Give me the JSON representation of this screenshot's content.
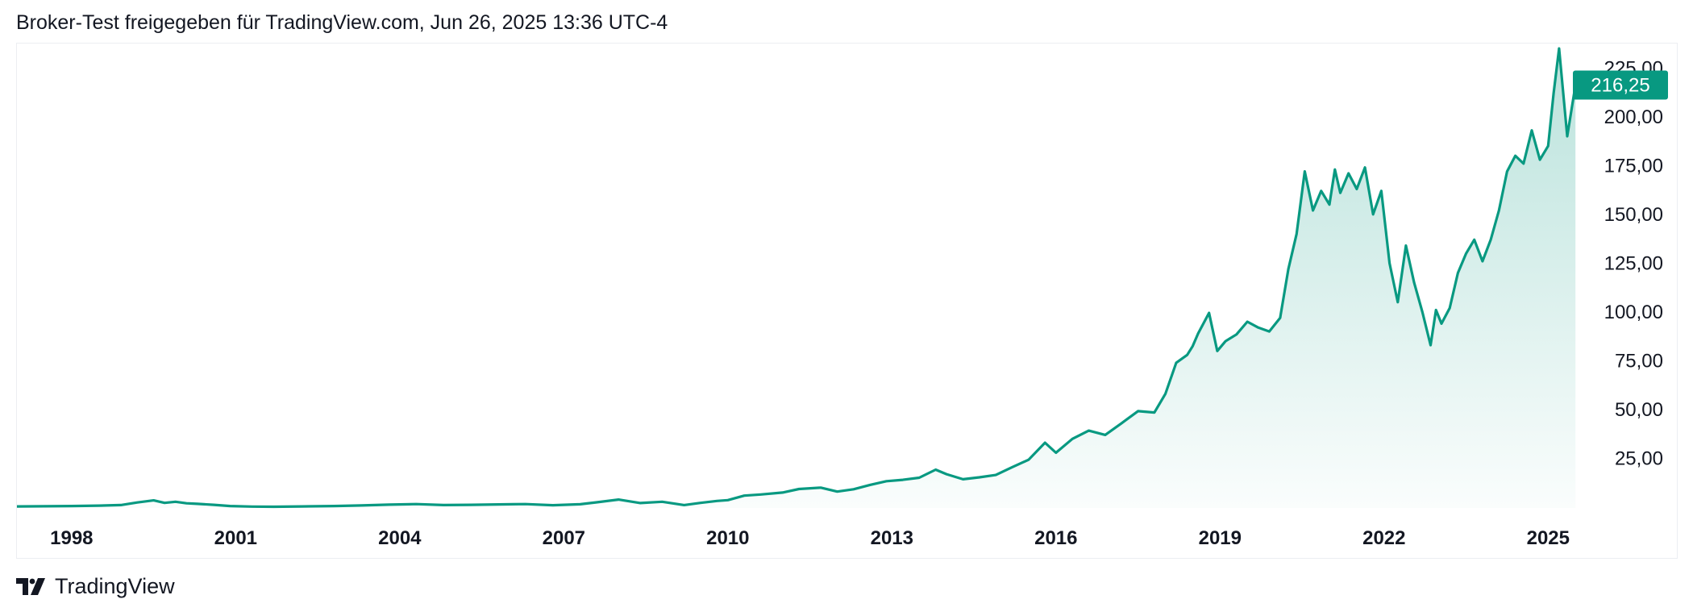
{
  "header": {
    "caption": "Broker-Test freigegeben für TradingView.com, Jun 26, 2025 13:36 UTC-4"
  },
  "footer": {
    "brand": "TradingView",
    "logo_icon": "tradingview-logo-icon"
  },
  "colors": {
    "line": "#089981",
    "fill_top": "#089981",
    "label_bg": "#089981"
  },
  "chart_data": {
    "type": "area",
    "x_ticks": [
      "1998",
      "2001",
      "2004",
      "2007",
      "2010",
      "2013",
      "2016",
      "2019",
      "2022",
      "2025"
    ],
    "y_ticks": [
      "25,00",
      "50,00",
      "75,00",
      "100,00",
      "125,00",
      "150,00",
      "175,00",
      "200,00",
      "225,00"
    ],
    "y_tick_values": [
      25,
      50,
      75,
      100,
      125,
      150,
      175,
      200,
      225
    ],
    "ylim": [
      -0.4,
      237.5
    ],
    "xlim": [
      1997.0,
      2025.6
    ],
    "last_value_label": "216,25",
    "last_value": 216.25,
    "series": [
      {
        "x": [
          1997.0,
          1998.0,
          1998.5,
          1998.9,
          1999.2,
          1999.5,
          1999.7,
          1999.9,
          2000.1,
          2000.3,
          2000.6,
          2000.9,
          2001.3,
          2001.7,
          2002.2,
          2002.8,
          2003.3,
          2003.8,
          2004.3,
          2004.8,
          2005.3,
          2005.8,
          2006.3,
          2006.8,
          2007.3,
          2007.6,
          2008.0,
          2008.4,
          2008.8,
          2009.2,
          2009.5,
          2009.8,
          2010.0,
          2010.3,
          2010.6,
          2011.0,
          2011.3,
          2011.7,
          2012.0,
          2012.3,
          2012.6,
          2012.9,
          2013.2,
          2013.5,
          2013.8,
          2014.0,
          2014.3,
          2014.6,
          2014.9,
          2015.2,
          2015.5,
          2015.8,
          2016.0,
          2016.3,
          2016.6,
          2016.9,
          2017.2,
          2017.5,
          2017.8,
          2018.0,
          2018.2,
          2018.4,
          2018.5,
          2018.6,
          2018.8,
          2018.95,
          2019.1,
          2019.3,
          2019.5,
          2019.7,
          2019.9,
          2020.1,
          2020.25,
          2020.4,
          2020.55,
          2020.7,
          2020.85,
          2021.0,
          2021.1,
          2021.2,
          2021.35,
          2021.5,
          2021.65,
          2021.8,
          2021.95,
          2022.1,
          2022.25,
          2022.4,
          2022.55,
          2022.7,
          2022.85,
          2022.95,
          2023.05,
          2023.2,
          2023.35,
          2023.5,
          2023.65,
          2023.8,
          2023.95,
          2024.1,
          2024.25,
          2024.4,
          2024.55,
          2024.7,
          2024.85,
          2025.0,
          2025.1,
          2025.2,
          2025.35,
          2025.5
        ],
        "values": [
          0.4,
          0.6,
          0.8,
          1.1,
          2.4,
          3.5,
          2.2,
          2.8,
          2.0,
          1.7,
          1.2,
          0.6,
          0.3,
          0.2,
          0.4,
          0.6,
          0.9,
          1.3,
          1.6,
          1.1,
          1.2,
          1.4,
          1.6,
          1.0,
          1.5,
          2.5,
          3.9,
          2.1,
          2.8,
          1.1,
          2.2,
          3.2,
          3.6,
          5.9,
          6.5,
          7.5,
          9.3,
          10.0,
          8.0,
          9.2,
          11.4,
          13.3,
          14.0,
          15.1,
          19.2,
          16.9,
          14.3,
          15.3,
          16.5,
          20.5,
          24.3,
          33.0,
          27.9,
          35.0,
          39.2,
          37.0,
          43.0,
          49.2,
          48.5,
          58.0,
          74.0,
          78.0,
          82.5,
          89.0,
          99.5,
          80.0,
          85.0,
          88.5,
          95.0,
          92.0,
          90.0,
          97.0,
          122.0,
          140.0,
          172.0,
          152.0,
          162.0,
          155.0,
          173.0,
          161.0,
          171.0,
          163.0,
          174.0,
          150.0,
          162.0,
          125.0,
          105.0,
          134.0,
          115.0,
          100.0,
          83.0,
          101.0,
          94.0,
          102.0,
          120.0,
          130.0,
          137.0,
          126.0,
          137.0,
          152.0,
          172.0,
          180.0,
          176.0,
          193.0,
          178.0,
          185.0,
          212.0,
          235.0,
          190.0,
          216.25
        ]
      }
    ]
  }
}
